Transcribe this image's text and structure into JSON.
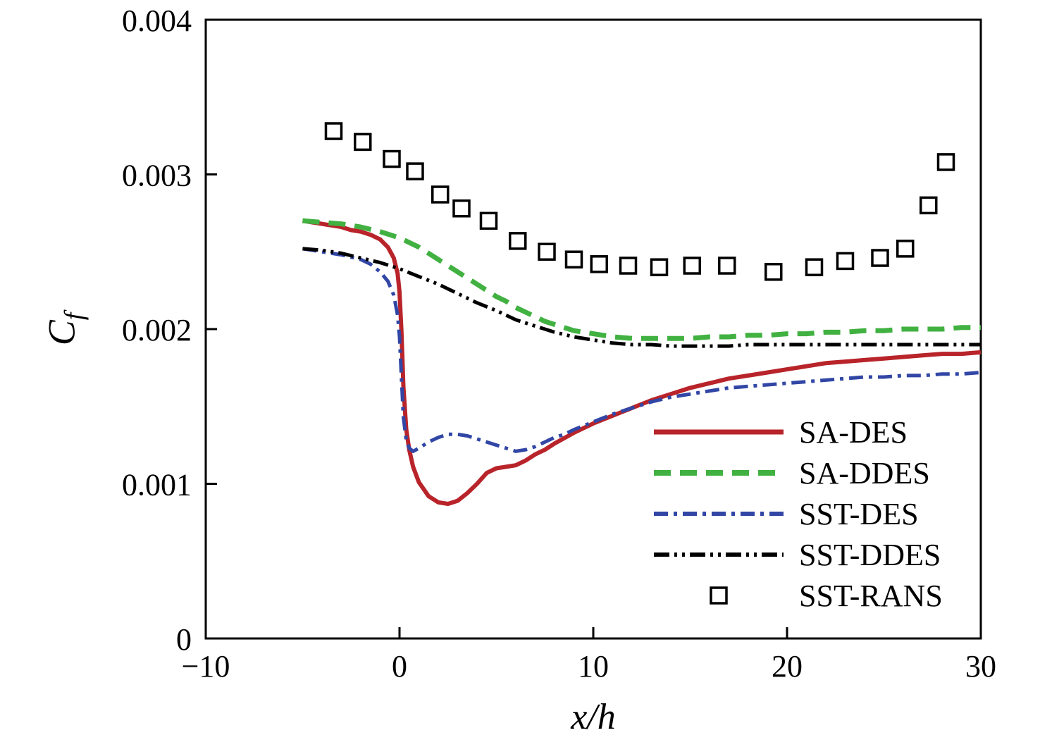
{
  "chart_data": {
    "type": "line",
    "xlabel": "x/h",
    "ylabel": "C_f",
    "ylabel_base": "C",
    "ylabel_sub": "f",
    "xlim": [
      -10,
      30
    ],
    "ylim": [
      0,
      0.004
    ],
    "xticks": [
      -10,
      0,
      10,
      20,
      30
    ],
    "yticks": [
      0,
      0.001,
      0.002,
      0.003,
      0.004
    ],
    "ytick_labels": [
      "0",
      "0.001",
      "0.002",
      "0.003",
      "0.004"
    ],
    "grid": false,
    "legend_position": "lower right",
    "marker_size": 22,
    "series": [
      {
        "name": "SA-DES",
        "color": "#b8242a",
        "style": "solid",
        "width": 6,
        "points": [
          [
            -5,
            0.0027
          ],
          [
            -4.5,
            0.00269
          ],
          [
            -4,
            0.00268
          ],
          [
            -3.5,
            0.00267
          ],
          [
            -3,
            0.00266
          ],
          [
            -2.5,
            0.00264
          ],
          [
            -2,
            0.00263
          ],
          [
            -1.5,
            0.00261
          ],
          [
            -1,
            0.00258
          ],
          [
            -0.6,
            0.00253
          ],
          [
            -0.3,
            0.00246
          ],
          [
            -0.1,
            0.00236
          ],
          [
            0,
            0.00224
          ],
          [
            0.1,
            0.00198
          ],
          [
            0.2,
            0.00163
          ],
          [
            0.35,
            0.00135
          ],
          [
            0.5,
            0.00122
          ],
          [
            0.7,
            0.00111
          ],
          [
            1,
            0.00101
          ],
          [
            1.5,
            0.00092
          ],
          [
            2,
            0.00088
          ],
          [
            2.5,
            0.00087
          ],
          [
            3,
            0.00089
          ],
          [
            3.5,
            0.00094
          ],
          [
            4,
            0.001
          ],
          [
            4.5,
            0.00107
          ],
          [
            5,
            0.0011
          ],
          [
            5.5,
            0.00111
          ],
          [
            6,
            0.00112
          ],
          [
            6.5,
            0.00115
          ],
          [
            7,
            0.00119
          ],
          [
            7.5,
            0.00122
          ],
          [
            8,
            0.00126
          ],
          [
            9,
            0.00133
          ],
          [
            10,
            0.00139
          ],
          [
            11,
            0.00144
          ],
          [
            12,
            0.00149
          ],
          [
            13,
            0.00154
          ],
          [
            14,
            0.00158
          ],
          [
            15,
            0.00162
          ],
          [
            16,
            0.00165
          ],
          [
            17,
            0.00168
          ],
          [
            18,
            0.0017
          ],
          [
            19,
            0.00172
          ],
          [
            20,
            0.00174
          ],
          [
            21,
            0.00176
          ],
          [
            22,
            0.00178
          ],
          [
            23,
            0.00179
          ],
          [
            24,
            0.0018
          ],
          [
            25,
            0.00181
          ],
          [
            26,
            0.00182
          ],
          [
            27,
            0.00183
          ],
          [
            28,
            0.00184
          ],
          [
            29,
            0.00184
          ],
          [
            30,
            0.00185
          ]
        ]
      },
      {
        "name": "SA-DDES",
        "color": "#41b141",
        "style": "dashed",
        "dash": "24 13",
        "width": 7,
        "points": [
          [
            -5,
            0.0027
          ],
          [
            -4,
            0.00269
          ],
          [
            -3,
            0.00268
          ],
          [
            -2,
            0.00266
          ],
          [
            -1,
            0.00263
          ],
          [
            0,
            0.00259
          ],
          [
            0.5,
            0.00256
          ],
          [
            1,
            0.00253
          ],
          [
            1.5,
            0.00249
          ],
          [
            2,
            0.00245
          ],
          [
            2.5,
            0.00241
          ],
          [
            3,
            0.00237
          ],
          [
            3.5,
            0.00233
          ],
          [
            4,
            0.00229
          ],
          [
            4.5,
            0.00225
          ],
          [
            5,
            0.00221
          ],
          [
            5.5,
            0.00218
          ],
          [
            6,
            0.00214
          ],
          [
            6.5,
            0.00211
          ],
          [
            7,
            0.00208
          ],
          [
            7.5,
            0.00205
          ],
          [
            8,
            0.00203
          ],
          [
            8.5,
            0.00201
          ],
          [
            9,
            0.00199
          ],
          [
            9.5,
            0.00198
          ],
          [
            10,
            0.00197
          ],
          [
            11,
            0.00195
          ],
          [
            12,
            0.00194
          ],
          [
            13,
            0.00194
          ],
          [
            14,
            0.00194
          ],
          [
            15,
            0.00194
          ],
          [
            16,
            0.00195
          ],
          [
            17,
            0.00195
          ],
          [
            18,
            0.00196
          ],
          [
            19,
            0.00196
          ],
          [
            20,
            0.00197
          ],
          [
            21,
            0.00197
          ],
          [
            22,
            0.00198
          ],
          [
            23,
            0.00198
          ],
          [
            24,
            0.00199
          ],
          [
            25,
            0.00199
          ],
          [
            26,
            0.002
          ],
          [
            27,
            0.002
          ],
          [
            28,
            0.002
          ],
          [
            29,
            0.00201
          ],
          [
            30,
            0.00201
          ]
        ]
      },
      {
        "name": "SST-DES",
        "color": "#3146a5",
        "style": "dashdot",
        "dash": "20 8 5 8",
        "width": 5,
        "points": [
          [
            -5,
            0.00252
          ],
          [
            -4,
            0.0025
          ],
          [
            -3,
            0.00248
          ],
          [
            -2,
            0.00245
          ],
          [
            -1.5,
            0.00242
          ],
          [
            -1,
            0.00237
          ],
          [
            -0.6,
            0.00231
          ],
          [
            -0.3,
            0.00222
          ],
          [
            -0.1,
            0.00209
          ],
          [
            0,
            0.00195
          ],
          [
            0.1,
            0.00168
          ],
          [
            0.2,
            0.00143
          ],
          [
            0.35,
            0.00128
          ],
          [
            0.5,
            0.00123
          ],
          [
            0.7,
            0.00121
          ],
          [
            1,
            0.00123
          ],
          [
            1.5,
            0.00127
          ],
          [
            2,
            0.0013
          ],
          [
            2.5,
            0.00132
          ],
          [
            3,
            0.00132
          ],
          [
            3.5,
            0.00131
          ],
          [
            4,
            0.00129
          ],
          [
            4.5,
            0.00127
          ],
          [
            5,
            0.00125
          ],
          [
            5.5,
            0.00123
          ],
          [
            6,
            0.00121
          ],
          [
            6.5,
            0.00122
          ],
          [
            7,
            0.00124
          ],
          [
            7.5,
            0.00127
          ],
          [
            8,
            0.0013
          ],
          [
            8.5,
            0.00132
          ],
          [
            9,
            0.00135
          ],
          [
            10,
            0.0014
          ],
          [
            11,
            0.00145
          ],
          [
            12,
            0.00149
          ],
          [
            13,
            0.00153
          ],
          [
            14,
            0.00156
          ],
          [
            15,
            0.00158
          ],
          [
            16,
            0.0016
          ],
          [
            17,
            0.00162
          ],
          [
            18,
            0.00163
          ],
          [
            19,
            0.00164
          ],
          [
            20,
            0.00165
          ],
          [
            21,
            0.00166
          ],
          [
            22,
            0.00167
          ],
          [
            23,
            0.00168
          ],
          [
            24,
            0.00169
          ],
          [
            25,
            0.00169
          ],
          [
            26,
            0.0017
          ],
          [
            27,
            0.0017
          ],
          [
            28,
            0.00171
          ],
          [
            29,
            0.00171
          ],
          [
            30,
            0.00172
          ]
        ]
      },
      {
        "name": "SST-DDES",
        "color": "#000000",
        "style": "dashdotdot",
        "dash": "22 7 4 7 4 7",
        "width": 5,
        "points": [
          [
            -5,
            0.00252
          ],
          [
            -4,
            0.00251
          ],
          [
            -3,
            0.00249
          ],
          [
            -2,
            0.00246
          ],
          [
            -1,
            0.00243
          ],
          [
            0,
            0.00239
          ],
          [
            1,
            0.00234
          ],
          [
            2,
            0.00229
          ],
          [
            3,
            0.00223
          ],
          [
            4,
            0.00217
          ],
          [
            5,
            0.00212
          ],
          [
            6,
            0.00206
          ],
          [
            7,
            0.00202
          ],
          [
            8,
            0.00198
          ],
          [
            9,
            0.00195
          ],
          [
            10,
            0.00193
          ],
          [
            11,
            0.00191
          ],
          [
            12,
            0.0019
          ],
          [
            13,
            0.0019
          ],
          [
            14,
            0.00189
          ],
          [
            15,
            0.00189
          ],
          [
            16,
            0.00189
          ],
          [
            17,
            0.00189
          ],
          [
            18,
            0.0019
          ],
          [
            19,
            0.0019
          ],
          [
            20,
            0.0019
          ],
          [
            21,
            0.0019
          ],
          [
            22,
            0.0019
          ],
          [
            23,
            0.0019
          ],
          [
            24,
            0.0019
          ],
          [
            25,
            0.0019
          ],
          [
            26,
            0.0019
          ],
          [
            27,
            0.0019
          ],
          [
            28,
            0.0019
          ],
          [
            29,
            0.0019
          ],
          [
            30,
            0.0019
          ]
        ]
      },
      {
        "name": "SST-RANS",
        "color": "#000000",
        "style": "scatter",
        "marker": "square",
        "points": [
          [
            -3.4,
            0.00328
          ],
          [
            -1.9,
            0.00321
          ],
          [
            -0.4,
            0.0031
          ],
          [
            0.8,
            0.00302
          ],
          [
            2.1,
            0.00287
          ],
          [
            3.2,
            0.00278
          ],
          [
            4.6,
            0.0027
          ],
          [
            6.1,
            0.00257
          ],
          [
            7.6,
            0.0025
          ],
          [
            9,
            0.00245
          ],
          [
            10.3,
            0.00242
          ],
          [
            11.8,
            0.00241
          ],
          [
            13.4,
            0.0024
          ],
          [
            15.1,
            0.00241
          ],
          [
            16.9,
            0.00241
          ],
          [
            19.3,
            0.00237
          ],
          [
            21.4,
            0.0024
          ],
          [
            23,
            0.00244
          ],
          [
            24.8,
            0.00246
          ],
          [
            26.1,
            0.00252
          ],
          [
            27.3,
            0.0028
          ],
          [
            28.2,
            0.00308
          ]
        ]
      }
    ]
  }
}
